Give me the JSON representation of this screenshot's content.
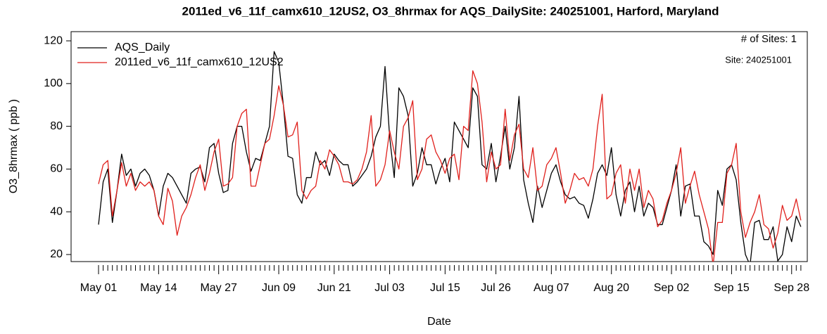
{
  "chart_data": {
    "type": "line",
    "title": "2011ed_v6_11f_camx610_12US2, O3_8hrmax for AQS_DailySite: 240251001, Harford, Maryland",
    "xlabel": "Date",
    "ylabel": "O3_8hrmax ( ppb )",
    "annotations": [
      "# of Sites: 1",
      "Site: 240251001"
    ],
    "legend": "top-left",
    "categories": [
      "May 01",
      null,
      null,
      null,
      null,
      null,
      null,
      null,
      null,
      null,
      null,
      null,
      null,
      "May 14",
      null,
      null,
      null,
      null,
      null,
      null,
      null,
      null,
      null,
      null,
      null,
      null,
      "May 27",
      null,
      null,
      null,
      null,
      null,
      null,
      null,
      null,
      null,
      null,
      null,
      null,
      "Jun 09",
      null,
      null,
      null,
      null,
      null,
      null,
      null,
      null,
      null,
      null,
      null,
      "Jun 21",
      null,
      null,
      null,
      null,
      null,
      null,
      null,
      null,
      null,
      null,
      null,
      "Jul 03",
      null,
      null,
      null,
      null,
      null,
      null,
      null,
      null,
      null,
      null,
      null,
      "Jul 15",
      null,
      null,
      null,
      null,
      null,
      null,
      null,
      null,
      null,
      null,
      "Jul 26",
      null,
      null,
      null,
      null,
      null,
      null,
      null,
      null,
      null,
      null,
      null,
      "Aug 07",
      null,
      null,
      null,
      null,
      null,
      null,
      null,
      null,
      null,
      null,
      null,
      null,
      "Aug 20",
      null,
      null,
      null,
      null,
      null,
      null,
      null,
      null,
      null,
      null,
      null,
      null,
      "Sep 02",
      null,
      null,
      null,
      null,
      null,
      null,
      null,
      null,
      null,
      null,
      null,
      null,
      "Sep 15",
      null,
      null,
      null,
      null,
      null,
      null,
      null,
      null,
      null,
      null,
      null,
      null,
      "Sep 28",
      null,
      null
    ],
    "series": [
      {
        "name": "AQS_Daily",
        "color": "#000000",
        "values": [
          34,
          54,
          60,
          35,
          50,
          67,
          57,
          60,
          52,
          58,
          60,
          57,
          50,
          38,
          52,
          58,
          56,
          52,
          48,
          44,
          58,
          60,
          61,
          54,
          70,
          72,
          58,
          49,
          50,
          72,
          80,
          80,
          68,
          59,
          65,
          64,
          72,
          80,
          115,
          110,
          90,
          66,
          65,
          48,
          44,
          56,
          56,
          68,
          62,
          64,
          57,
          67,
          64,
          62,
          62,
          52,
          54,
          57,
          60,
          66,
          75,
          80,
          108,
          75,
          56,
          98,
          94,
          85,
          52,
          58,
          70,
          62,
          62,
          53,
          60,
          65,
          54,
          82,
          78,
          74,
          70,
          98,
          94,
          62,
          60,
          72,
          54,
          66,
          80,
          60,
          70,
          94,
          55,
          44,
          35,
          52,
          42,
          50,
          58,
          62,
          54,
          48,
          46,
          47,
          44,
          43,
          37,
          46,
          58,
          62,
          57,
          70,
          48,
          38,
          50,
          54,
          40,
          52,
          38,
          44,
          42,
          34,
          34,
          42,
          50,
          62,
          38,
          52,
          53,
          38,
          38,
          26,
          24,
          20,
          50,
          43,
          60,
          62,
          55,
          35,
          20,
          15,
          35,
          36,
          27,
          27,
          33,
          17,
          20,
          33,
          26,
          38,
          33
        ]
      },
      {
        "name": "2011ed_v6_11f_camx610_12US2",
        "color": "#e0201c",
        "values": [
          53,
          62,
          64,
          38,
          50,
          63,
          52,
          58,
          50,
          54,
          52,
          54,
          50,
          38,
          34,
          51,
          45,
          29,
          38,
          42,
          48,
          56,
          62,
          50,
          58,
          68,
          74,
          52,
          53,
          56,
          80,
          86,
          88,
          52,
          52,
          62,
          72,
          74,
          85,
          99,
          90,
          75,
          76,
          82,
          50,
          46,
          50,
          52,
          64,
          60,
          69,
          66,
          62,
          54,
          54,
          53,
          55,
          60,
          68,
          85,
          52,
          55,
          62,
          78,
          68,
          60,
          80,
          84,
          92,
          55,
          60,
          74,
          76,
          68,
          64,
          58,
          65,
          67,
          55,
          80,
          78,
          106,
          100,
          82,
          54,
          68,
          60,
          62,
          88,
          64,
          76,
          81,
          60,
          56,
          70,
          50,
          52,
          62,
          65,
          70,
          58,
          44,
          50,
          58,
          55,
          56,
          52,
          60,
          80,
          95,
          46,
          48,
          58,
          62,
          44,
          60,
          50,
          60,
          42,
          50,
          46,
          33,
          36,
          44,
          50,
          58,
          70,
          44,
          52,
          59,
          48,
          40,
          32,
          15,
          35,
          35,
          58,
          62,
          72,
          40,
          28,
          35,
          40,
          48,
          34,
          32,
          23,
          30,
          43,
          36,
          38,
          46,
          36
        ]
      }
    ],
    "ylim": [
      16.7,
      124.3
    ],
    "yticks": [
      20,
      40,
      60,
      80,
      100,
      120
    ]
  }
}
